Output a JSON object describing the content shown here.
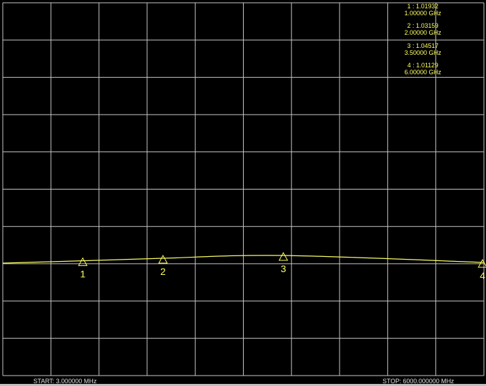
{
  "chart_data": {
    "type": "line",
    "start_label": "START: 3.000000 MHz",
    "stop_label": "STOP: 6000.000000 MHz",
    "x_unit": "GHz",
    "xlim": [
      0.003,
      6.0
    ],
    "grid": true,
    "divisions": {
      "x": 10,
      "y": 10
    },
    "trace_color": "#ffff66",
    "grid_color": "#c8c8c8",
    "background": "#000000",
    "series": [
      {
        "x": [
          0.003,
          1.0,
          2.0,
          3.5,
          6.0
        ],
        "y": [
          1.008,
          1.01932,
          1.03159,
          1.04517,
          1.01129
        ]
      }
    ],
    "markers": [
      {
        "id": "1",
        "value": "1.01932",
        "freq": "1.00000 GHz",
        "x": 1.0,
        "y": 1.01932
      },
      {
        "id": "2",
        "value": "1.03159",
        "freq": "2.00000 GHz",
        "x": 2.0,
        "y": 1.03159
      },
      {
        "id": "3",
        "value": "1.04517",
        "freq": "3.50000 GHz",
        "x": 3.5,
        "y": 1.04517
      },
      {
        "id": "4",
        "value": "1.01129",
        "freq": "6.00000 GHz",
        "x": 6.0,
        "y": 1.01129
      }
    ]
  }
}
